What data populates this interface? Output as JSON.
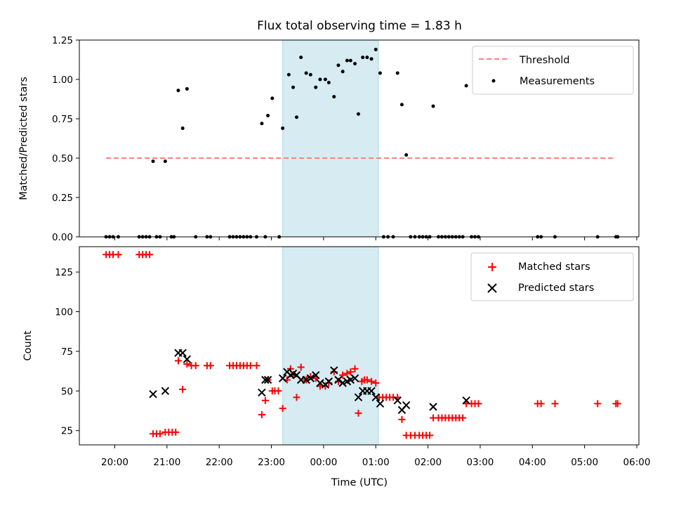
{
  "chart_data": [
    {
      "type": "scatter",
      "title": "Flux total observing time = 1.83 h",
      "xlabel": "",
      "ylabel": "Matched/Predicted stars",
      "ylim": [
        0,
        1.25
      ],
      "yticks": [
        "0.00",
        "0.25",
        "0.50",
        "0.75",
        "1.00",
        "1.25"
      ],
      "xlim": [
        "19:35",
        "06:05"
      ],
      "grid": false,
      "legend_position": "top-right",
      "colors": {
        "threshold": "#ff8080",
        "measurements": "#000000",
        "span": "#add8e6"
      },
      "highlight_span": [
        "23:13",
        "01:03"
      ],
      "threshold": {
        "name": "Threshold",
        "value": 0.5,
        "x_start": "19:50",
        "x_end": "05:35"
      },
      "series": [
        {
          "name": "Measurements",
          "points": [
            [
              "19:50",
              0
            ],
            [
              "19:54",
              0
            ],
            [
              "19:58",
              0
            ],
            [
              "20:04",
              0
            ],
            [
              "20:28",
              0
            ],
            [
              "20:32",
              0
            ],
            [
              "20:36",
              0
            ],
            [
              "20:40",
              0
            ],
            [
              "20:44",
              0.48
            ],
            [
              "20:48",
              0
            ],
            [
              "20:52",
              0
            ],
            [
              "20:58",
              0.48
            ],
            [
              "21:05",
              0
            ],
            [
              "21:08",
              0
            ],
            [
              "21:13",
              0.93
            ],
            [
              "21:18",
              0.69
            ],
            [
              "21:23",
              0.94
            ],
            [
              "21:33",
              0
            ],
            [
              "21:46",
              0
            ],
            [
              "21:50",
              0
            ],
            [
              "22:12",
              0
            ],
            [
              "22:16",
              0
            ],
            [
              "22:20",
              0
            ],
            [
              "22:24",
              0
            ],
            [
              "22:28",
              0
            ],
            [
              "22:32",
              0
            ],
            [
              "22:36",
              0
            ],
            [
              "22:43",
              0
            ],
            [
              "22:49",
              0.72
            ],
            [
              "22:53",
              0
            ],
            [
              "22:56",
              0.77
            ],
            [
              "23:01",
              0.88
            ],
            [
              "23:09",
              0
            ],
            [
              "23:13",
              0.69
            ],
            [
              "23:20",
              1.03
            ],
            [
              "23:25",
              0.95
            ],
            [
              "23:29",
              0.76
            ],
            [
              "23:34",
              1.14
            ],
            [
              "23:40",
              1.04
            ],
            [
              "23:45",
              1.03
            ],
            [
              "23:51",
              0.95
            ],
            [
              "23:56",
              1.0
            ],
            [
              "00:02",
              1.0
            ],
            [
              "00:06",
              0.98
            ],
            [
              "00:12",
              0.89
            ],
            [
              "00:17",
              1.09
            ],
            [
              "00:22",
              1.05
            ],
            [
              "00:27",
              1.12
            ],
            [
              "00:31",
              1.12
            ],
            [
              "00:36",
              1.1
            ],
            [
              "00:40",
              0.78
            ],
            [
              "00:45",
              1.14
            ],
            [
              "00:50",
              1.14
            ],
            [
              "00:55",
              1.13
            ],
            [
              "01:00",
              1.19
            ],
            [
              "01:05",
              1.04
            ],
            [
              "01:09",
              0
            ],
            [
              "01:14",
              0
            ],
            [
              "01:20",
              0
            ],
            [
              "01:25",
              1.04
            ],
            [
              "01:30",
              0.84
            ],
            [
              "01:35",
              0.52
            ],
            [
              "01:40",
              0
            ],
            [
              "01:45",
              0
            ],
            [
              "01:50",
              0
            ],
            [
              "01:54",
              0
            ],
            [
              "01:58",
              0
            ],
            [
              "02:02",
              0
            ],
            [
              "02:06",
              0.83
            ],
            [
              "02:12",
              0
            ],
            [
              "02:16",
              0
            ],
            [
              "02:20",
              0
            ],
            [
              "02:24",
              0
            ],
            [
              "02:28",
              0
            ],
            [
              "02:32",
              0
            ],
            [
              "02:36",
              0
            ],
            [
              "02:40",
              0
            ],
            [
              "02:44",
              0.96
            ],
            [
              "02:50",
              0
            ],
            [
              "02:54",
              0
            ],
            [
              "02:58",
              0
            ],
            [
              "04:06",
              0
            ],
            [
              "04:10",
              0
            ],
            [
              "04:26",
              0
            ],
            [
              "05:15",
              0
            ],
            [
              "05:36",
              0
            ],
            [
              "05:38",
              0
            ]
          ]
        }
      ]
    },
    {
      "type": "scatter",
      "title": "",
      "xlabel": "Time (UTC)",
      "ylabel": "Count",
      "ylim": [
        16,
        141
      ],
      "yticks": [
        "25",
        "50",
        "75",
        "100",
        "125"
      ],
      "xticks": [
        "20:00",
        "21:00",
        "22:00",
        "23:00",
        "00:00",
        "01:00",
        "02:00",
        "03:00",
        "04:00",
        "05:00",
        "06:00"
      ],
      "xlim": [
        "19:35",
        "06:05"
      ],
      "grid": false,
      "legend_position": "top-right",
      "colors": {
        "matched": "#ff0000",
        "predicted": "#000000",
        "span": "#add8e6"
      },
      "highlight_span": [
        "23:13",
        "01:03"
      ],
      "series": [
        {
          "name": "Matched stars",
          "points": [
            [
              "19:50",
              136
            ],
            [
              "19:54",
              136
            ],
            [
              "19:58",
              136
            ],
            [
              "20:04",
              136
            ],
            [
              "20:28",
              136
            ],
            [
              "20:32",
              136
            ],
            [
              "20:36",
              136
            ],
            [
              "20:40",
              136
            ],
            [
              "20:44",
              23
            ],
            [
              "20:48",
              23
            ],
            [
              "20:52",
              23
            ],
            [
              "20:58",
              24
            ],
            [
              "21:02",
              24
            ],
            [
              "21:06",
              24
            ],
            [
              "21:10",
              24
            ],
            [
              "21:13",
              69
            ],
            [
              "21:18",
              51
            ],
            [
              "21:23",
              67
            ],
            [
              "21:28",
              66
            ],
            [
              "21:33",
              66
            ],
            [
              "21:46",
              66
            ],
            [
              "21:50",
              66
            ],
            [
              "22:12",
              66
            ],
            [
              "22:16",
              66
            ],
            [
              "22:20",
              66
            ],
            [
              "22:24",
              66
            ],
            [
              "22:28",
              66
            ],
            [
              "22:32",
              66
            ],
            [
              "22:36",
              66
            ],
            [
              "22:43",
              66
            ],
            [
              "22:49",
              35
            ],
            [
              "22:53",
              44
            ],
            [
              "22:56",
              57
            ],
            [
              "23:01",
              50
            ],
            [
              "23:04",
              50
            ],
            [
              "23:08",
              50
            ],
            [
              "23:13",
              39
            ],
            [
              "23:18",
              57
            ],
            [
              "23:22",
              64
            ],
            [
              "23:25",
              60
            ],
            [
              "23:29",
              46
            ],
            [
              "23:34",
              65
            ],
            [
              "23:40",
              57
            ],
            [
              "23:45",
              59
            ],
            [
              "23:51",
              58
            ],
            [
              "23:56",
              53
            ],
            [
              "00:02",
              53
            ],
            [
              "00:06",
              55
            ],
            [
              "00:12",
              62
            ],
            [
              "00:17",
              56
            ],
            [
              "00:22",
              60
            ],
            [
              "00:27",
              61
            ],
            [
              "00:31",
              62
            ],
            [
              "00:36",
              64
            ],
            [
              "00:40",
              36
            ],
            [
              "00:44",
              56
            ],
            [
              "00:47",
              57
            ],
            [
              "00:50",
              57
            ],
            [
              "00:55",
              56
            ],
            [
              "01:00",
              55
            ],
            [
              "01:04",
              46
            ],
            [
              "01:08",
              46
            ],
            [
              "01:12",
              46
            ],
            [
              "01:16",
              46
            ],
            [
              "01:20",
              46
            ],
            [
              "01:25",
              46
            ],
            [
              "01:30",
              32
            ],
            [
              "01:35",
              22
            ],
            [
              "01:40",
              22
            ],
            [
              "01:45",
              22
            ],
            [
              "01:50",
              22
            ],
            [
              "01:54",
              22
            ],
            [
              "01:58",
              22
            ],
            [
              "02:02",
              22
            ],
            [
              "02:06",
              33
            ],
            [
              "02:12",
              33
            ],
            [
              "02:16",
              33
            ],
            [
              "02:20",
              33
            ],
            [
              "02:24",
              33
            ],
            [
              "02:28",
              33
            ],
            [
              "02:32",
              33
            ],
            [
              "02:36",
              33
            ],
            [
              "02:40",
              33
            ],
            [
              "02:44",
              42
            ],
            [
              "02:50",
              42
            ],
            [
              "02:54",
              42
            ],
            [
              "02:58",
              42
            ],
            [
              "04:06",
              42
            ],
            [
              "04:10",
              42
            ],
            [
              "04:26",
              42
            ],
            [
              "05:15",
              42
            ],
            [
              "05:36",
              42
            ],
            [
              "05:38",
              42
            ]
          ]
        },
        {
          "name": "Predicted stars",
          "points": [
            [
              "20:44",
              48
            ],
            [
              "20:58",
              50
            ],
            [
              "21:13",
              74
            ],
            [
              "21:18",
              74
            ],
            [
              "21:23",
              70
            ],
            [
              "22:49",
              49
            ],
            [
              "22:53",
              57
            ],
            [
              "22:56",
              57
            ],
            [
              "23:13",
              58
            ],
            [
              "23:18",
              62
            ],
            [
              "23:22",
              60
            ],
            [
              "23:25",
              61
            ],
            [
              "23:29",
              60
            ],
            [
              "23:34",
              57
            ],
            [
              "23:40",
              57
            ],
            [
              "23:45",
              58
            ],
            [
              "23:51",
              60
            ],
            [
              "23:56",
              55
            ],
            [
              "00:02",
              54
            ],
            [
              "00:06",
              56
            ],
            [
              "00:12",
              63
            ],
            [
              "00:17",
              57
            ],
            [
              "00:22",
              55
            ],
            [
              "00:27",
              56
            ],
            [
              "00:31",
              57
            ],
            [
              "00:36",
              58
            ],
            [
              "00:40",
              46
            ],
            [
              "00:45",
              50
            ],
            [
              "00:50",
              50
            ],
            [
              "00:55",
              50
            ],
            [
              "01:00",
              46
            ],
            [
              "01:05",
              42
            ],
            [
              "01:25",
              44
            ],
            [
              "01:30",
              38
            ],
            [
              "01:35",
              41
            ],
            [
              "02:06",
              40
            ],
            [
              "02:44",
              44
            ]
          ]
        }
      ]
    }
  ]
}
